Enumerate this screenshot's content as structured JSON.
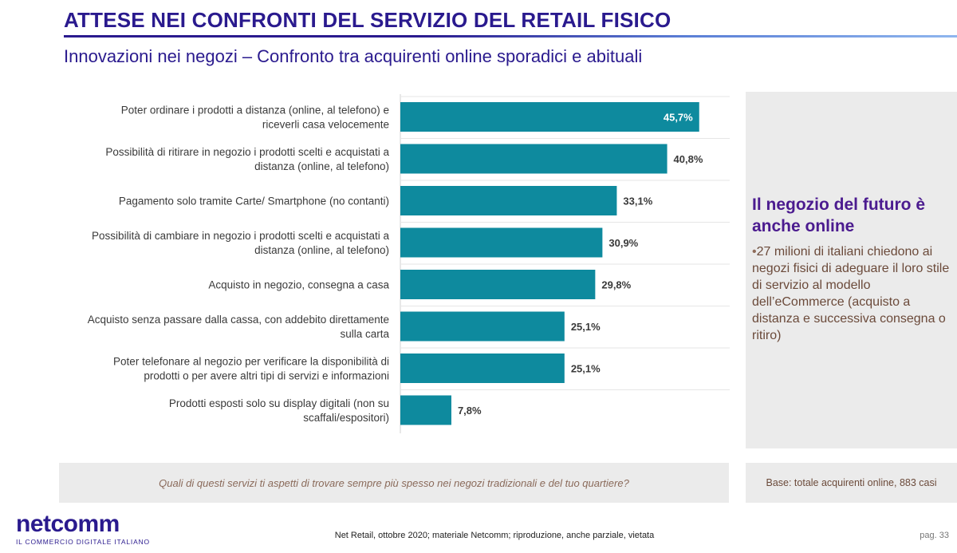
{
  "header": {
    "title": "ATTESE NEI CONFRONTI DEL SERVIZIO DEL RETAIL FISICO",
    "subtitle": "Innovazioni nei negozi – Confronto tra acquirenti online sporadici e abituali"
  },
  "colors": {
    "bar": "#0e8a9e",
    "title": "#2a1a8e",
    "accent_heading": "#4b1b8f"
  },
  "chart_data": {
    "type": "bar",
    "orientation": "horizontal",
    "title": "",
    "xlabel": "",
    "ylabel": "",
    "xlim": [
      0,
      50
    ],
    "grid": false,
    "categories": [
      [
        "Poter ordinare i prodotti a distanza (online, al telefono) e",
        "riceverli casa velocemente"
      ],
      [
        "Possibilità di ritirare in negozio i prodotti scelti e acquistati a",
        "distanza (online, al telefono)"
      ],
      [
        "Pagamento solo tramite Carte/ Smartphone (no contanti)"
      ],
      [
        "Possibilità di cambiare in negozio i prodotti scelti e acquistati a",
        "distanza (online, al telefono)"
      ],
      [
        "Acquisto in negozio, consegna a casa"
      ],
      [
        "Acquisto senza passare dalla cassa, con addebito direttamente",
        "sulla carta"
      ],
      [
        "Poter telefonare al negozio per verificare la disponibilità di",
        "prodotti o per avere altri tipi di servizi e informazioni"
      ],
      [
        "Prodotti esposti solo su display digitali (non su",
        "scaffali/espositori)"
      ]
    ],
    "values": [
      45.7,
      40.8,
      33.1,
      30.9,
      29.8,
      25.1,
      25.1,
      7.8
    ],
    "value_labels": [
      "45,7%",
      "40,8%",
      "33,1%",
      "30,9%",
      "29,8%",
      "25,1%",
      "25,1%",
      "7,8%"
    ]
  },
  "side_panel": {
    "heading": "Il negozio del futuro è anche online",
    "bullet": "•",
    "body": "27 milioni di italiani chiedono ai negozi fisici di adeguare il loro stile di servizio al modello dell’eCommerce (acquisto a distanza e successiva consegna o ritiro)"
  },
  "question": "Quali di questi servizi ti aspetti di trovare sempre più spesso nei negozi tradizionali e del tuo quartiere?",
  "base": "Base: totale acquirenti online, 883 casi",
  "footer": {
    "logo_word": "netcomm",
    "logo_tagline": "IL COMMERCIO DIGITALE ITALIANO",
    "note": "Net Retail, ottobre 2020; materiale Netcomm; riproduzione, anche parziale, vietata",
    "page": "pag. 33"
  }
}
